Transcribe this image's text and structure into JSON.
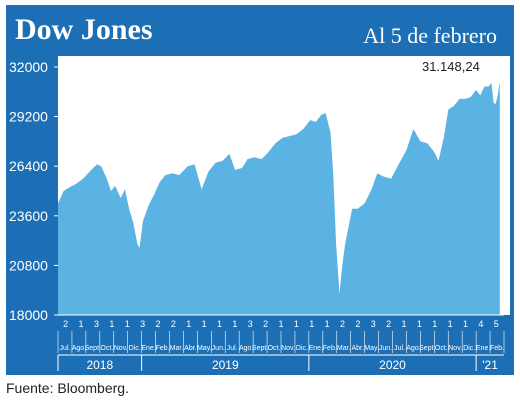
{
  "header": {
    "title": "Dow Jones",
    "subtitle": "Al 5 de febrero"
  },
  "source": "Fuente: Bloomberg.",
  "colors": {
    "background": "#1d6fb5",
    "plot_area": "#ffffff",
    "area_fill": "#5bb3e3",
    "text_light": "#ffffff",
    "text_dark": "#222222"
  },
  "chart_data": {
    "type": "area",
    "title": "Dow Jones",
    "subtitle": "Al 5 de febrero",
    "ylim": [
      18000,
      32000
    ],
    "yticks": [
      "32000",
      "29200",
      "26400",
      "23600",
      "20800",
      "18000"
    ],
    "grid": false,
    "annotation": {
      "label": "31.148,24",
      "value": 31148.24
    },
    "x_day_labels": [
      "2",
      "1",
      "3",
      "1",
      "1",
      "3",
      "2",
      "2",
      "1",
      "1",
      "1",
      "1",
      "3",
      "2",
      "1",
      "1",
      "1",
      "1",
      "2",
      "2",
      "3",
      "2",
      "1",
      "1",
      "1",
      "1",
      "1",
      "4",
      "5"
    ],
    "months": [
      {
        "label": "Jul.",
        "start": 0,
        "end": 1
      },
      {
        "label": "Ago.",
        "start": 1,
        "end": 2
      },
      {
        "label": "Sept.",
        "start": 2,
        "end": 3
      },
      {
        "label": "Oct.",
        "start": 3,
        "end": 4
      },
      {
        "label": "Nov.",
        "start": 4,
        "end": 5
      },
      {
        "label": "Dic.",
        "start": 5,
        "end": 6
      },
      {
        "label": "Ene.",
        "start": 6,
        "end": 7
      },
      {
        "label": "Feb.",
        "start": 7,
        "end": 8
      },
      {
        "label": "Mar.",
        "start": 8,
        "end": 9
      },
      {
        "label": "Abr.",
        "start": 9,
        "end": 10
      },
      {
        "label": "May.",
        "start": 10,
        "end": 11
      },
      {
        "label": "Jun.",
        "start": 11,
        "end": 12
      },
      {
        "label": "Jul.",
        "start": 12,
        "end": 13
      },
      {
        "label": "Ago.",
        "start": 13,
        "end": 14
      },
      {
        "label": "Sept.",
        "start": 14,
        "end": 15
      },
      {
        "label": "Oct.",
        "start": 15,
        "end": 16
      },
      {
        "label": "Nov.",
        "start": 16,
        "end": 17
      },
      {
        "label": "Dic.",
        "start": 17,
        "end": 18
      },
      {
        "label": "Ene.",
        "start": 18,
        "end": 19
      },
      {
        "label": "Feb.",
        "start": 19,
        "end": 20
      },
      {
        "label": "Mar.",
        "start": 20,
        "end": 21
      },
      {
        "label": "Abr.",
        "start": 21,
        "end": 22
      },
      {
        "label": "May.",
        "start": 22,
        "end": 23
      },
      {
        "label": "Jun.",
        "start": 23,
        "end": 24
      },
      {
        "label": "Jul.",
        "start": 24,
        "end": 25
      },
      {
        "label": "Ago.",
        "start": 25,
        "end": 26
      },
      {
        "label": "Sept.",
        "start": 26,
        "end": 27
      },
      {
        "label": "Oct.",
        "start": 27,
        "end": 28
      },
      {
        "label": "Nov.",
        "start": 28,
        "end": 29
      },
      {
        "label": "Dic.",
        "start": 29,
        "end": 30
      },
      {
        "label": "Ene.",
        "start": 30,
        "end": 31
      },
      {
        "label": "Feb.",
        "start": 31,
        "end": 32
      }
    ],
    "years": [
      {
        "label": "2018",
        "start": 0,
        "end": 6
      },
      {
        "label": "2019",
        "start": 6,
        "end": 18
      },
      {
        "label": "2020",
        "start": 18,
        "end": 30
      },
      {
        "label": "'21",
        "start": 30,
        "end": 32
      }
    ],
    "x_range": [
      0,
      32
    ],
    "x_unit": "months",
    "series": [
      {
        "x": [
          0,
          0.4,
          0.8,
          1.3,
          1.8,
          2.4,
          2.8,
          3.1,
          3.5,
          3.8,
          4.1,
          4.5,
          4.8,
          5.1,
          5.4,
          5.7,
          5.85,
          6.1,
          6.5,
          6.9,
          7.3,
          7.7,
          8.2,
          8.7,
          9.3,
          9.8,
          10.3,
          10.8,
          11.3,
          11.8,
          12.3,
          12.7,
          13.2,
          13.6,
          14.1,
          14.6,
          15.1,
          15.6,
          16.1,
          16.6,
          17.1,
          17.6,
          18.1,
          18.5,
          18.9,
          19.2,
          19.55,
          19.75,
          19.95,
          20.2,
          20.4,
          20.6,
          20.8,
          21.1,
          21.5,
          22.0,
          22.5,
          22.9,
          23.4,
          23.9,
          24.5,
          25.0,
          25.5,
          26.0,
          26.5,
          27.0,
          27.3,
          27.7,
          28.0,
          28.4,
          28.8,
          29.2,
          29.6,
          30.0,
          30.3,
          30.6,
          30.9,
          31.1,
          31.25,
          31.4,
          31.55,
          31.7
        ],
        "y": [
          24300,
          25000,
          25200,
          25400,
          25700,
          26200,
          26500,
          26400,
          25700,
          25000,
          25300,
          24600,
          25100,
          24000,
          23200,
          22000,
          21800,
          23300,
          24200,
          24800,
          25500,
          25900,
          26000,
          25900,
          26400,
          26500,
          25100,
          26100,
          26600,
          26700,
          27100,
          26200,
          26300,
          26800,
          26900,
          26800,
          27200,
          27700,
          28000,
          28100,
          28200,
          28500,
          29000,
          28900,
          29300,
          29400,
          28300,
          25900,
          22000,
          19200,
          20800,
          22000,
          22800,
          24000,
          24000,
          24300,
          25100,
          26000,
          25800,
          25700,
          26600,
          27300,
          28500,
          27800,
          27700,
          27200,
          26700,
          28100,
          29600,
          29800,
          30200,
          30200,
          30300,
          30700,
          30400,
          30900,
          30900,
          31100,
          30000,
          29900,
          30400,
          31148
        ]
      }
    ]
  }
}
